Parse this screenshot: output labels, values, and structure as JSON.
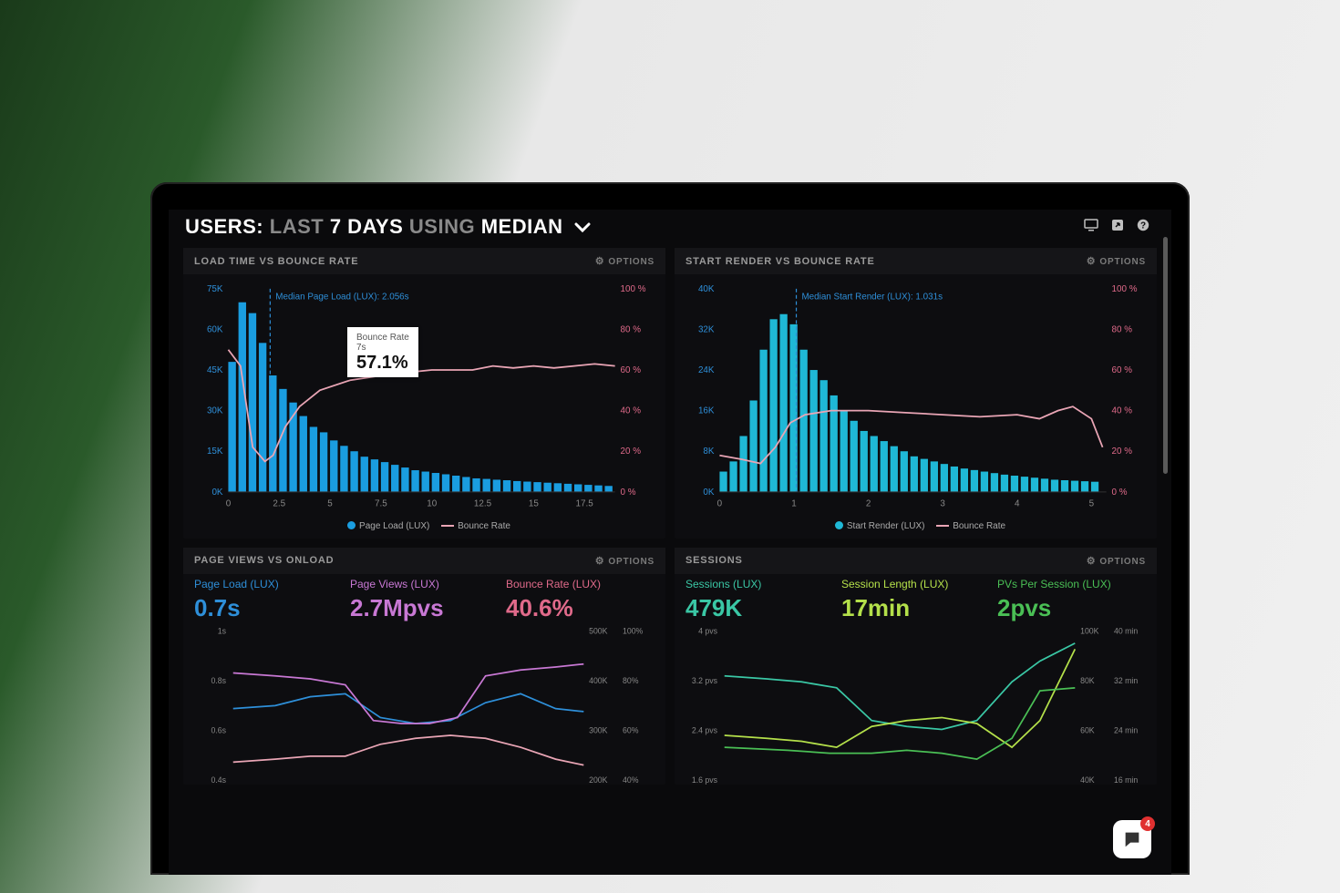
{
  "header": {
    "prefix": "USERS:",
    "dim1": "LAST",
    "bold1": "7 DAYS",
    "dim2": "USING",
    "bold2": "MEDIAN"
  },
  "options_label": "OPTIONS",
  "panels": {
    "load_bounce": {
      "title": "LOAD TIME VS BOUNCE RATE",
      "median_label": "Median Page Load (LUX): 2.056s",
      "median_x": 2.056,
      "y_left": {
        "max": 75,
        "ticks": [
          0,
          15,
          30,
          45,
          60,
          75
        ],
        "unit": "K",
        "color": "#2e8fd9"
      },
      "y_right": {
        "max": 100,
        "ticks": [
          0,
          20,
          40,
          60,
          80,
          100
        ],
        "unit": " %",
        "color": "#e06a8a"
      },
      "x": {
        "max": 19,
        "ticks": [
          0,
          2.5,
          5,
          7.5,
          10,
          12.5,
          15,
          17.5
        ]
      },
      "bars": {
        "color": "#1a9de0",
        "x_step": 0.5,
        "values": [
          48,
          70,
          66,
          55,
          43,
          38,
          33,
          28,
          24,
          22,
          19,
          17,
          15,
          13,
          12,
          11,
          10,
          9,
          8,
          7.5,
          7,
          6.5,
          6,
          5.5,
          5,
          4.8,
          4.5,
          4.3,
          4,
          3.8,
          3.6,
          3.4,
          3.2,
          3,
          2.8,
          2.6,
          2.4,
          2.2
        ]
      },
      "line": {
        "color": "#e9a5b5",
        "points": [
          [
            0,
            70
          ],
          [
            0.6,
            62
          ],
          [
            1.2,
            22
          ],
          [
            1.8,
            15
          ],
          [
            2.2,
            18
          ],
          [
            2.8,
            32
          ],
          [
            3.5,
            42
          ],
          [
            4.5,
            50
          ],
          [
            6,
            55
          ],
          [
            8,
            58
          ],
          [
            10,
            60
          ],
          [
            12,
            60
          ],
          [
            13,
            62
          ],
          [
            14,
            61
          ],
          [
            15,
            62
          ],
          [
            16,
            61
          ],
          [
            17,
            62
          ],
          [
            18,
            63
          ],
          [
            19,
            62
          ]
        ]
      },
      "legend": {
        "bar": "Page Load (LUX)",
        "line": "Bounce Rate"
      },
      "tooltip": {
        "l1": "Bounce Rate",
        "l2": "7s",
        "big": "57.1%"
      }
    },
    "render_bounce": {
      "title": "START RENDER VS BOUNCE RATE",
      "median_label": "Median Start Render (LUX): 1.031s",
      "median_x": 1.031,
      "y_left": {
        "max": 40,
        "ticks": [
          0,
          8,
          16,
          24,
          32,
          40
        ],
        "unit": "K",
        "color": "#2e8fd9"
      },
      "y_right": {
        "max": 100,
        "ticks": [
          0,
          20,
          40,
          60,
          80,
          100
        ],
        "unit": " %",
        "color": "#e06a8a"
      },
      "x": {
        "max": 5.2,
        "ticks": [
          0,
          1,
          2,
          3,
          4,
          5
        ]
      },
      "bars": {
        "color": "#1fb8d6",
        "x_step": 0.135,
        "values": [
          4,
          6,
          11,
          18,
          28,
          34,
          35,
          33,
          28,
          24,
          22,
          19,
          16,
          14,
          12,
          11,
          10,
          9,
          8,
          7,
          6.5,
          6,
          5.5,
          5,
          4.6,
          4.3,
          4,
          3.7,
          3.4,
          3.2,
          3,
          2.8,
          2.6,
          2.4,
          2.3,
          2.2,
          2.1,
          2
        ]
      },
      "line": {
        "color": "#e9a5b5",
        "points": [
          [
            0,
            18
          ],
          [
            0.3,
            16
          ],
          [
            0.55,
            14
          ],
          [
            0.75,
            22
          ],
          [
            0.95,
            34
          ],
          [
            1.15,
            38
          ],
          [
            1.5,
            40
          ],
          [
            2,
            40
          ],
          [
            2.5,
            39
          ],
          [
            3,
            38
          ],
          [
            3.5,
            37
          ],
          [
            4,
            38
          ],
          [
            4.3,
            36
          ],
          [
            4.55,
            40
          ],
          [
            4.75,
            42
          ],
          [
            5,
            36
          ],
          [
            5.15,
            22
          ]
        ]
      },
      "legend": {
        "bar": "Start Render (LUX)",
        "line": "Bounce Rate"
      }
    },
    "pageviews": {
      "title": "PAGE VIEWS VS ONLOAD",
      "metrics": [
        {
          "cls": "m-blue",
          "label": "Page Load (LUX)",
          "value": "0.7s"
        },
        {
          "cls": "m-purple",
          "label": "Page Views (LUX)",
          "value": "2.7Mpvs"
        },
        {
          "cls": "m-pink",
          "label": "Bounce Rate (LUX)",
          "value": "40.6%"
        }
      ],
      "y_left": {
        "ticks": [
          "1s",
          "0.8s",
          "0.6s",
          "0.4s"
        ],
        "color": "#2e8fd9"
      },
      "y_right1": {
        "ticks": [
          "500K",
          "400K",
          "300K",
          "200K"
        ],
        "color": "#c878d4"
      },
      "y_right2": {
        "ticks": [
          "100%",
          "80%",
          "60%",
          "40%"
        ],
        "color": "#e06a8a"
      },
      "lines": {
        "blue": {
          "color": "#2e8fd9",
          "points": [
            [
              0,
              52
            ],
            [
              12,
              50
            ],
            [
              22,
              44
            ],
            [
              32,
              42
            ],
            [
              42,
              58
            ],
            [
              52,
              62
            ],
            [
              62,
              60
            ],
            [
              72,
              48
            ],
            [
              82,
              42
            ],
            [
              92,
              52
            ],
            [
              100,
              54
            ]
          ]
        },
        "purple": {
          "color": "#c878d4",
          "points": [
            [
              0,
              28
            ],
            [
              12,
              30
            ],
            [
              22,
              32
            ],
            [
              32,
              36
            ],
            [
              40,
              60
            ],
            [
              48,
              62
            ],
            [
              56,
              62
            ],
            [
              64,
              58
            ],
            [
              72,
              30
            ],
            [
              82,
              26
            ],
            [
              92,
              24
            ],
            [
              100,
              22
            ]
          ]
        },
        "pink": {
          "color": "#e9a5b5",
          "points": [
            [
              0,
              88
            ],
            [
              12,
              86
            ],
            [
              22,
              84
            ],
            [
              32,
              84
            ],
            [
              42,
              76
            ],
            [
              52,
              72
            ],
            [
              62,
              70
            ],
            [
              72,
              72
            ],
            [
              82,
              78
            ],
            [
              92,
              86
            ],
            [
              100,
              90
            ]
          ]
        }
      }
    },
    "sessions": {
      "title": "SESSIONS",
      "metrics": [
        {
          "cls": "m-teal",
          "label": "Sessions (LUX)",
          "value": "479K"
        },
        {
          "cls": "m-lime",
          "label": "Session Length (LUX)",
          "value": "17min"
        },
        {
          "cls": "m-green",
          "label": "PVs Per Session (LUX)",
          "value": "2pvs"
        }
      ],
      "y_left": {
        "ticks": [
          "4 pvs",
          "3.2 pvs",
          "2.4 pvs",
          "1.6 pvs"
        ],
        "color": "#4abf55"
      },
      "y_right1": {
        "ticks": [
          "100K",
          "80K",
          "60K",
          "40K"
        ],
        "color": "#3ac7a5"
      },
      "y_right2": {
        "ticks": [
          "40 min",
          "32 min",
          "24 min",
          "16 min"
        ],
        "color": "#b4e04a"
      },
      "lines": {
        "teal": {
          "color": "#3ac7a5",
          "points": [
            [
              0,
              30
            ],
            [
              12,
              32
            ],
            [
              22,
              34
            ],
            [
              32,
              38
            ],
            [
              42,
              60
            ],
            [
              52,
              64
            ],
            [
              62,
              66
            ],
            [
              72,
              60
            ],
            [
              82,
              34
            ],
            [
              90,
              20
            ],
            [
              100,
              8
            ]
          ]
        },
        "lime": {
          "color": "#b4e04a",
          "points": [
            [
              0,
              70
            ],
            [
              12,
              72
            ],
            [
              22,
              74
            ],
            [
              32,
              78
            ],
            [
              42,
              64
            ],
            [
              52,
              60
            ],
            [
              62,
              58
            ],
            [
              72,
              62
            ],
            [
              82,
              78
            ],
            [
              90,
              60
            ],
            [
              100,
              12
            ]
          ]
        },
        "green": {
          "color": "#4abf55",
          "points": [
            [
              0,
              78
            ],
            [
              18,
              80
            ],
            [
              30,
              82
            ],
            [
              42,
              82
            ],
            [
              52,
              80
            ],
            [
              62,
              82
            ],
            [
              72,
              86
            ],
            [
              82,
              72
            ],
            [
              90,
              40
            ],
            [
              100,
              38
            ]
          ]
        }
      }
    }
  },
  "chat_count": "4"
}
